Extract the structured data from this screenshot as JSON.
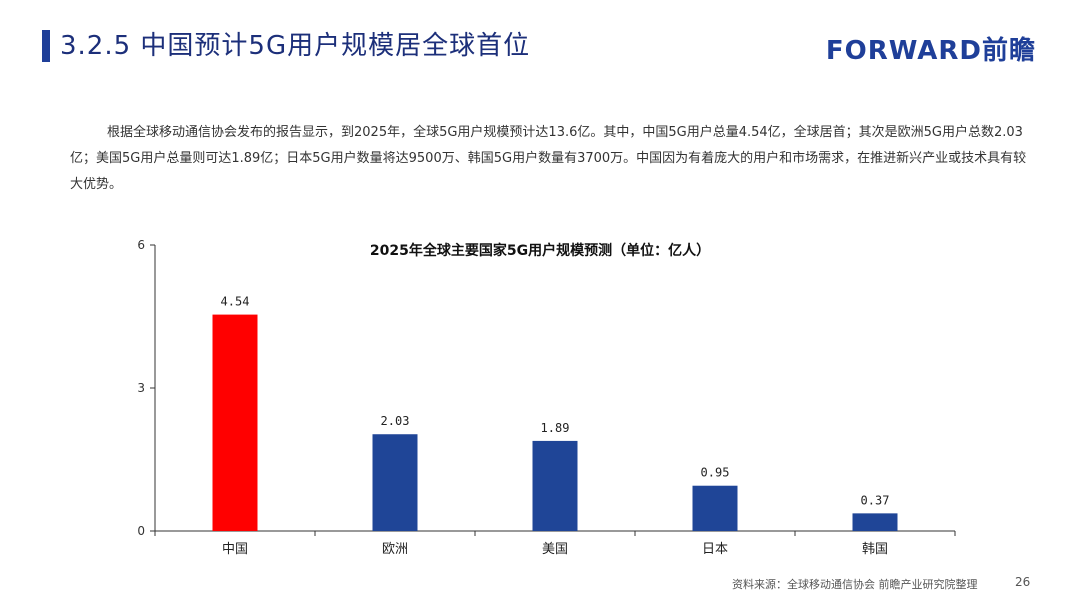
{
  "header": {
    "title": "3.2.5 中国预计5G用户规模居全球首位",
    "logo_text": "FORWARD前瞻"
  },
  "intro_text": "根据全球移动通信协会发布的报告显示，到2025年，全球5G用户规模预计达13.6亿。其中，中国5G用户总量4.54亿，全球居首；其次是欧洲5G用户总数2.03亿；美国5G用户总量则可达1.89亿；日本5G用户数量将达9500万、韩国5G用户数量有3700万。中国因为有着庞大的用户和市场需求，在推进新兴产业或技术具有较大优势。",
  "footer": {
    "source": "资料来源：全球移动通信协会 前瞻产业研究院整理",
    "page_number": "26"
  },
  "colors": {
    "accent": "#1f3f99",
    "highlight_bar": "#ff0000",
    "default_bar": "#1f4597"
  },
  "chart_data": {
    "type": "bar",
    "title": "2025年全球主要国家5G用户规模预测（单位：亿人）",
    "categories": [
      "中国",
      "欧洲",
      "美国",
      "日本",
      "韩国"
    ],
    "values": [
      4.54,
      2.03,
      1.89,
      0.95,
      0.37
    ],
    "value_labels": [
      "4.54",
      "2.03",
      "1.89",
      "0.95",
      "0.37"
    ],
    "ylim": [
      0,
      6
    ],
    "yticks": [
      0,
      3,
      6
    ],
    "bar_colors": [
      "#ff0000",
      "#1f4597",
      "#1f4597",
      "#1f4597",
      "#1f4597"
    ],
    "grid": false,
    "legend": "none"
  }
}
